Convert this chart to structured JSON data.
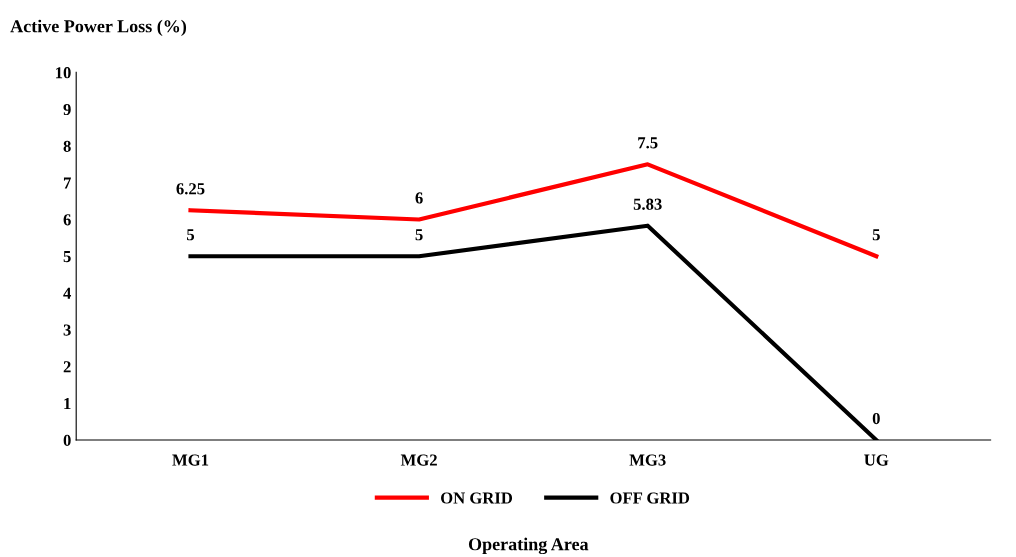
{
  "chart_data": {
    "type": "line",
    "ylabel": "Active Power Loss (%)",
    "xlabel": "Operating Area",
    "categories": [
      "MG1",
      "MG2",
      "MG3",
      "UG"
    ],
    "series": [
      {
        "name": "ON GRID",
        "color": "#ff0000",
        "values": [
          6.25,
          6,
          7.5,
          5
        ],
        "value_labels": [
          "6.25",
          "6",
          "7.5",
          "5"
        ]
      },
      {
        "name": "OFF GRID",
        "color": "#000000",
        "values": [
          5,
          5,
          5.83,
          0
        ],
        "value_labels": [
          "5",
          "5",
          "5.83",
          "0"
        ]
      }
    ],
    "ylim": [
      0,
      10
    ],
    "yticks": [
      0,
      1,
      2,
      3,
      4,
      5,
      6,
      7,
      8,
      9,
      10
    ],
    "grid": false,
    "legend": "bottom",
    "marker": "none",
    "line_style": "solid"
  }
}
